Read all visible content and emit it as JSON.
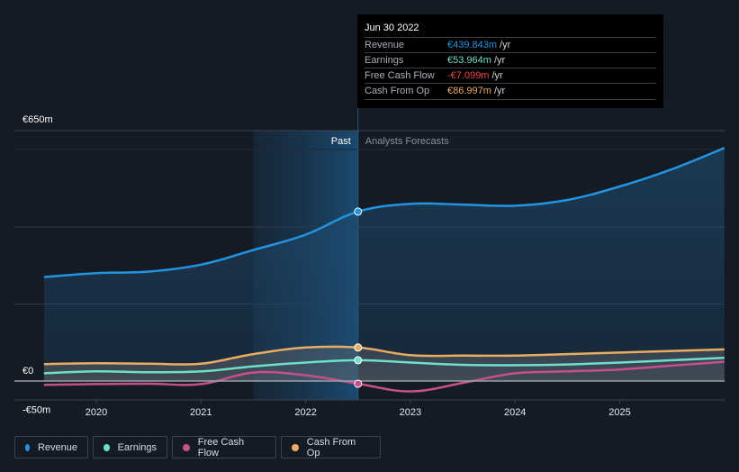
{
  "chart_data": {
    "type": "line",
    "title": "",
    "xlabel": "",
    "ylabel": "",
    "currency": "€",
    "ylim": [
      -50,
      650
    ],
    "xlim": [
      2019.5,
      2026.0
    ],
    "y_tick_labels": [
      {
        "value": 650,
        "label": "€650m"
      },
      {
        "value": 0,
        "label": "€0"
      },
      {
        "value": -50,
        "label": "-€50m"
      }
    ],
    "x_tick_labels": [
      {
        "value": 2020,
        "label": "2020"
      },
      {
        "value": 2021,
        "label": "2021"
      },
      {
        "value": 2022,
        "label": "2022"
      },
      {
        "value": 2023,
        "label": "2023"
      },
      {
        "value": 2024,
        "label": "2024"
      },
      {
        "value": 2025,
        "label": "2025"
      }
    ],
    "gridlines": [
      200,
      400
    ],
    "grid": true,
    "past_region_label": "Past",
    "forecast_region_label": "Analysts Forecasts",
    "divider_x": 2022.5,
    "highlight_start_x": 2021.5,
    "series": [
      {
        "name": "Revenue",
        "color": "#2394df",
        "area": true,
        "points": [
          [
            2019.5,
            270
          ],
          [
            2020.0,
            280
          ],
          [
            2020.5,
            284
          ],
          [
            2021.0,
            302
          ],
          [
            2021.5,
            340
          ],
          [
            2022.0,
            380
          ],
          [
            2022.5,
            439.843
          ],
          [
            2023.0,
            460
          ],
          [
            2023.5,
            458
          ],
          [
            2024.0,
            455
          ],
          [
            2024.5,
            470
          ],
          [
            2025.0,
            505
          ],
          [
            2025.5,
            550
          ],
          [
            2026.0,
            605
          ]
        ]
      },
      {
        "name": "Earnings",
        "color": "#6ee0c8",
        "area": false,
        "points": [
          [
            2019.5,
            20
          ],
          [
            2020.0,
            25
          ],
          [
            2020.5,
            23
          ],
          [
            2021.0,
            25
          ],
          [
            2021.5,
            38
          ],
          [
            2022.0,
            48
          ],
          [
            2022.5,
            53.964
          ],
          [
            2023.0,
            48
          ],
          [
            2023.5,
            42
          ],
          [
            2024.0,
            41
          ],
          [
            2024.5,
            43
          ],
          [
            2025.0,
            48
          ],
          [
            2025.5,
            54
          ],
          [
            2026.0,
            60
          ]
        ]
      },
      {
        "name": "Free Cash Flow",
        "color": "#c5508b",
        "area": false,
        "points": [
          [
            2019.5,
            -10
          ],
          [
            2020.0,
            -8
          ],
          [
            2020.5,
            -7
          ],
          [
            2021.0,
            -8
          ],
          [
            2021.5,
            22
          ],
          [
            2022.0,
            15
          ],
          [
            2022.5,
            -7.099
          ],
          [
            2023.0,
            -27
          ],
          [
            2023.5,
            -5
          ],
          [
            2024.0,
            20
          ],
          [
            2024.5,
            25
          ],
          [
            2025.0,
            30
          ],
          [
            2025.5,
            40
          ],
          [
            2026.0,
            50
          ]
        ]
      },
      {
        "name": "Cash From Op",
        "color": "#e9ad62",
        "area": false,
        "points": [
          [
            2019.5,
            44
          ],
          [
            2020.0,
            46
          ],
          [
            2020.5,
            45
          ],
          [
            2021.0,
            45
          ],
          [
            2021.5,
            70
          ],
          [
            2022.0,
            87
          ],
          [
            2022.5,
            86.997
          ],
          [
            2023.0,
            67
          ],
          [
            2023.5,
            66
          ],
          [
            2024.0,
            66
          ],
          [
            2024.5,
            70
          ],
          [
            2025.0,
            74
          ],
          [
            2025.5,
            78
          ],
          [
            2026.0,
            82
          ]
        ]
      }
    ],
    "tooltip": {
      "date": "Jun 30 2022",
      "x": 2022.5,
      "rows": [
        {
          "label": "Revenue",
          "value": "€439.843m",
          "unit": "/yr",
          "color": "#2394df"
        },
        {
          "label": "Earnings",
          "value": "€53.964m",
          "unit": "/yr",
          "color": "#6ee0c8"
        },
        {
          "label": "Free Cash Flow",
          "value": "-€7.099m",
          "unit": "/yr",
          "color": "#e84a4a"
        },
        {
          "label": "Cash From Op",
          "value": "€86.997m",
          "unit": "/yr",
          "color": "#e9ad62"
        }
      ]
    },
    "legend": {
      "placement": "bottom-left",
      "items": [
        {
          "label": "Revenue",
          "color": "#2394df"
        },
        {
          "label": "Earnings",
          "color": "#6ee0c8"
        },
        {
          "label": "Free Cash Flow",
          "color": "#c5508b"
        },
        {
          "label": "Cash From Op",
          "color": "#e9ad62"
        }
      ]
    }
  }
}
